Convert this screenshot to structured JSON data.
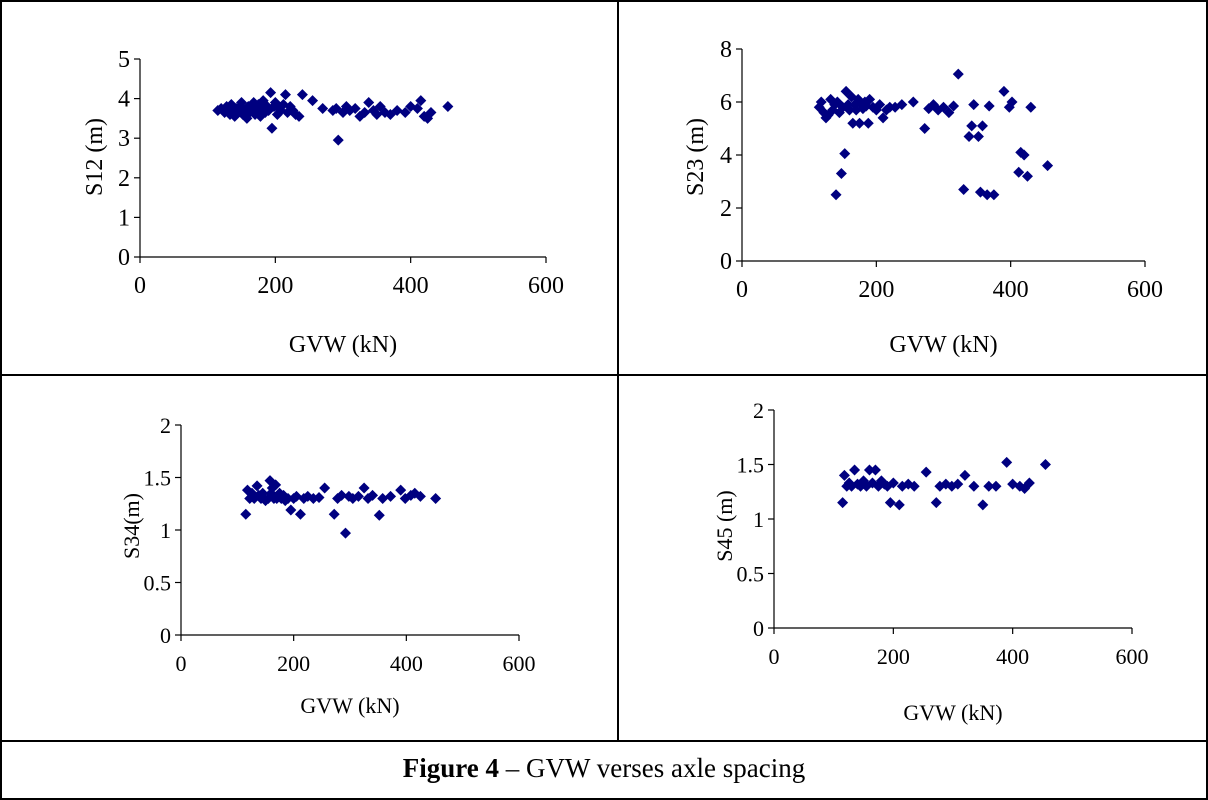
{
  "colors": {
    "marker": "#000080",
    "axis": "#000000",
    "border": "#000000"
  },
  "caption": {
    "bold": "Figure 4",
    "rest": " – GVW verses axle spacing"
  },
  "chart_data": [
    {
      "type": "scatter",
      "xlabel": "GVW (kN)",
      "ylabel": "S12 (m)",
      "xlim": [
        0,
        600
      ],
      "ylim": [
        0,
        5
      ],
      "xticks": [
        0,
        200,
        400,
        600
      ],
      "yticks": [
        0,
        1,
        2,
        3,
        4,
        5
      ],
      "grid": false,
      "points": [
        [
          115,
          3.7
        ],
        [
          120,
          3.75
        ],
        [
          125,
          3.65
        ],
        [
          128,
          3.8
        ],
        [
          130,
          3.7
        ],
        [
          133,
          3.6
        ],
        [
          135,
          3.85
        ],
        [
          138,
          3.7
        ],
        [
          140,
          3.55
        ],
        [
          142,
          3.75
        ],
        [
          145,
          3.65
        ],
        [
          148,
          3.8
        ],
        [
          150,
          3.9
        ],
        [
          152,
          3.6
        ],
        [
          155,
          3.7
        ],
        [
          158,
          3.5
        ],
        [
          160,
          3.8
        ],
        [
          162,
          3.65
        ],
        [
          165,
          3.75
        ],
        [
          168,
          3.9
        ],
        [
          170,
          3.6
        ],
        [
          172,
          3.7
        ],
        [
          175,
          3.85
        ],
        [
          178,
          3.55
        ],
        [
          180,
          3.75
        ],
        [
          182,
          3.95
        ],
        [
          185,
          3.65
        ],
        [
          188,
          3.8
        ],
        [
          190,
          3.7
        ],
        [
          193,
          4.15
        ],
        [
          195,
          3.25
        ],
        [
          198,
          3.8
        ],
        [
          200,
          3.9
        ],
        [
          203,
          3.6
        ],
        [
          205,
          3.75
        ],
        [
          208,
          3.7
        ],
        [
          212,
          3.85
        ],
        [
          215,
          4.1
        ],
        [
          218,
          3.65
        ],
        [
          222,
          3.8
        ],
        [
          226,
          3.7
        ],
        [
          230,
          3.6
        ],
        [
          235,
          3.55
        ],
        [
          240,
          4.1
        ],
        [
          255,
          3.95
        ],
        [
          270,
          3.75
        ],
        [
          285,
          3.7
        ],
        [
          290,
          3.75
        ],
        [
          293,
          2.95
        ],
        [
          300,
          3.65
        ],
        [
          305,
          3.8
        ],
        [
          310,
          3.7
        ],
        [
          318,
          3.75
        ],
        [
          325,
          3.55
        ],
        [
          332,
          3.65
        ],
        [
          338,
          3.9
        ],
        [
          345,
          3.7
        ],
        [
          350,
          3.6
        ],
        [
          355,
          3.8
        ],
        [
          362,
          3.65
        ],
        [
          370,
          3.6
        ],
        [
          380,
          3.7
        ],
        [
          392,
          3.65
        ],
        [
          400,
          3.8
        ],
        [
          410,
          3.75
        ],
        [
          415,
          3.95
        ],
        [
          420,
          3.55
        ],
        [
          425,
          3.5
        ],
        [
          430,
          3.65
        ],
        [
          455,
          3.8
        ]
      ]
    },
    {
      "type": "scatter",
      "xlabel": "GVW (kN)",
      "ylabel": "S23 (m)",
      "xlim": [
        0,
        600
      ],
      "ylim": [
        0,
        8
      ],
      "xticks": [
        0,
        200,
        400,
        600
      ],
      "yticks": [
        0,
        2,
        4,
        6,
        8
      ],
      "grid": false,
      "points": [
        [
          115,
          5.8
        ],
        [
          118,
          6.0
        ],
        [
          122,
          5.6
        ],
        [
          125,
          5.4
        ],
        [
          128,
          5.5
        ],
        [
          132,
          6.1
        ],
        [
          135,
          5.7
        ],
        [
          138,
          5.9
        ],
        [
          140,
          2.5
        ],
        [
          142,
          6.0
        ],
        [
          145,
          5.6
        ],
        [
          148,
          3.3
        ],
        [
          150,
          5.8
        ],
        [
          153,
          4.05
        ],
        [
          155,
          6.4
        ],
        [
          158,
          5.9
        ],
        [
          160,
          5.7
        ],
        [
          163,
          6.2
        ],
        [
          165,
          5.2
        ],
        [
          168,
          5.9
        ],
        [
          170,
          5.7
        ],
        [
          173,
          6.1
        ],
        [
          175,
          5.2
        ],
        [
          178,
          5.9
        ],
        [
          180,
          5.75
        ],
        [
          183,
          6.0
        ],
        [
          185,
          5.85
        ],
        [
          188,
          5.2
        ],
        [
          190,
          6.1
        ],
        [
          195,
          5.8
        ],
        [
          200,
          5.7
        ],
        [
          205,
          5.9
        ],
        [
          210,
          5.4
        ],
        [
          215,
          5.7
        ],
        [
          220,
          5.8
        ],
        [
          228,
          5.8
        ],
        [
          238,
          5.9
        ],
        [
          255,
          6.0
        ],
        [
          272,
          5.0
        ],
        [
          278,
          5.75
        ],
        [
          285,
          5.9
        ],
        [
          292,
          5.7
        ],
        [
          300,
          5.8
        ],
        [
          308,
          5.6
        ],
        [
          315,
          5.85
        ],
        [
          322,
          7.05
        ],
        [
          330,
          2.7
        ],
        [
          338,
          4.7
        ],
        [
          342,
          5.1
        ],
        [
          345,
          5.9
        ],
        [
          352,
          4.7
        ],
        [
          358,
          5.1
        ],
        [
          355,
          2.6
        ],
        [
          365,
          2.5
        ],
        [
          368,
          5.85
        ],
        [
          375,
          2.5
        ],
        [
          390,
          6.4
        ],
        [
          398,
          5.8
        ],
        [
          402,
          6.0
        ],
        [
          412,
          3.35
        ],
        [
          415,
          4.1
        ],
        [
          420,
          4.0
        ],
        [
          425,
          3.2
        ],
        [
          430,
          5.8
        ],
        [
          455,
          3.6
        ]
      ]
    },
    {
      "type": "scatter",
      "xlabel": "GVW (kN)",
      "ylabel": "S34(m)",
      "xlim": [
        0,
        600
      ],
      "ylim": [
        0,
        2
      ],
      "xticks": [
        0,
        200,
        400,
        600
      ],
      "yticks": [
        0,
        0.5,
        1,
        1.5,
        2
      ],
      "ytick_labels": [
        "0",
        "0.5",
        "1",
        "1.5",
        "2"
      ],
      "grid": false,
      "points": [
        [
          115,
          1.15
        ],
        [
          118,
          1.38
        ],
        [
          122,
          1.3
        ],
        [
          126,
          1.35
        ],
        [
          130,
          1.3
        ],
        [
          135,
          1.42
        ],
        [
          138,
          1.33
        ],
        [
          142,
          1.3
        ],
        [
          145,
          1.35
        ],
        [
          150,
          1.28
        ],
        [
          155,
          1.3
        ],
        [
          158,
          1.47
        ],
        [
          160,
          1.35
        ],
        [
          162,
          1.4
        ],
        [
          165,
          1.3
        ],
        [
          168,
          1.43
        ],
        [
          170,
          1.3
        ],
        [
          175,
          1.35
        ],
        [
          178,
          1.3
        ],
        [
          182,
          1.33
        ],
        [
          185,
          1.28
        ],
        [
          190,
          1.3
        ],
        [
          195,
          1.19
        ],
        [
          200,
          1.3
        ],
        [
          205,
          1.32
        ],
        [
          212,
          1.15
        ],
        [
          218,
          1.3
        ],
        [
          225,
          1.32
        ],
        [
          235,
          1.3
        ],
        [
          245,
          1.31
        ],
        [
          255,
          1.4
        ],
        [
          272,
          1.15
        ],
        [
          278,
          1.3
        ],
        [
          285,
          1.33
        ],
        [
          292,
          0.97
        ],
        [
          298,
          1.32
        ],
        [
          305,
          1.3
        ],
        [
          315,
          1.32
        ],
        [
          325,
          1.4
        ],
        [
          332,
          1.3
        ],
        [
          340,
          1.33
        ],
        [
          352,
          1.14
        ],
        [
          358,
          1.3
        ],
        [
          372,
          1.32
        ],
        [
          390,
          1.38
        ],
        [
          398,
          1.3
        ],
        [
          408,
          1.33
        ],
        [
          415,
          1.35
        ],
        [
          425,
          1.32
        ],
        [
          452,
          1.3
        ]
      ]
    },
    {
      "type": "scatter",
      "xlabel": "GVW (kN)",
      "ylabel": "S45 (m)",
      "xlim": [
        0,
        600
      ],
      "ylim": [
        0,
        2
      ],
      "xticks": [
        0,
        200,
        400,
        600
      ],
      "yticks": [
        0,
        0.5,
        1,
        1.5,
        2
      ],
      "ytick_labels": [
        "0",
        "0.5",
        "1",
        "1.5",
        "2"
      ],
      "grid": false,
      "points": [
        [
          115,
          1.15
        ],
        [
          118,
          1.4
        ],
        [
          122,
          1.3
        ],
        [
          126,
          1.33
        ],
        [
          130,
          1.3
        ],
        [
          135,
          1.45
        ],
        [
          140,
          1.32
        ],
        [
          145,
          1.3
        ],
        [
          150,
          1.35
        ],
        [
          155,
          1.3
        ],
        [
          160,
          1.45
        ],
        [
          165,
          1.33
        ],
        [
          170,
          1.45
        ],
        [
          175,
          1.3
        ],
        [
          180,
          1.35
        ],
        [
          185,
          1.32
        ],
        [
          190,
          1.3
        ],
        [
          195,
          1.15
        ],
        [
          200,
          1.33
        ],
        [
          210,
          1.13
        ],
        [
          215,
          1.3
        ],
        [
          225,
          1.32
        ],
        [
          235,
          1.3
        ],
        [
          255,
          1.43
        ],
        [
          272,
          1.15
        ],
        [
          278,
          1.3
        ],
        [
          288,
          1.32
        ],
        [
          298,
          1.3
        ],
        [
          308,
          1.32
        ],
        [
          320,
          1.4
        ],
        [
          335,
          1.3
        ],
        [
          350,
          1.13
        ],
        [
          360,
          1.3
        ],
        [
          372,
          1.3
        ],
        [
          390,
          1.52
        ],
        [
          400,
          1.32
        ],
        [
          412,
          1.3
        ],
        [
          420,
          1.28
        ],
        [
          428,
          1.33
        ],
        [
          455,
          1.5
        ]
      ]
    }
  ]
}
